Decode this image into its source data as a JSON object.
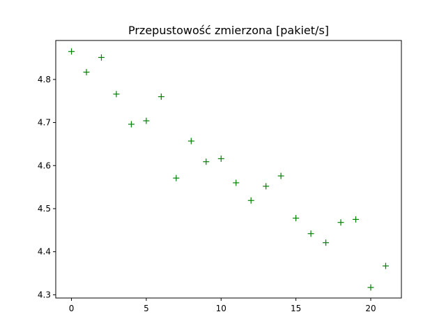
{
  "chart_data": {
    "type": "scatter",
    "title": "Przepustowość zmierzona [pakiet/s]",
    "xlabel": "",
    "ylabel": "",
    "marker": "+",
    "color": "#008000",
    "xlim": [
      -1.05,
      22.05
    ],
    "ylim": [
      4.2925,
      4.8905
    ],
    "xticks": [
      0,
      5,
      10,
      15,
      20
    ],
    "yticks": [
      4.3,
      4.4,
      4.5,
      4.6,
      4.7,
      4.8
    ],
    "ytick_labels": [
      "4.3",
      "4.4",
      "4.5",
      "4.6",
      "4.7",
      "4.8"
    ],
    "grid": false,
    "series": [
      {
        "x": [
          0,
          1,
          2,
          3,
          4,
          5,
          6,
          7,
          8,
          9,
          10,
          11,
          12,
          13,
          14,
          15,
          16,
          17,
          18,
          19,
          20,
          21
        ],
        "y": [
          4.865,
          4.817,
          4.851,
          4.766,
          4.696,
          4.704,
          4.76,
          4.571,
          4.657,
          4.609,
          4.616,
          4.56,
          4.519,
          4.552,
          4.576,
          4.478,
          4.442,
          4.421,
          4.468,
          4.475,
          4.317,
          4.367
        ]
      }
    ]
  }
}
